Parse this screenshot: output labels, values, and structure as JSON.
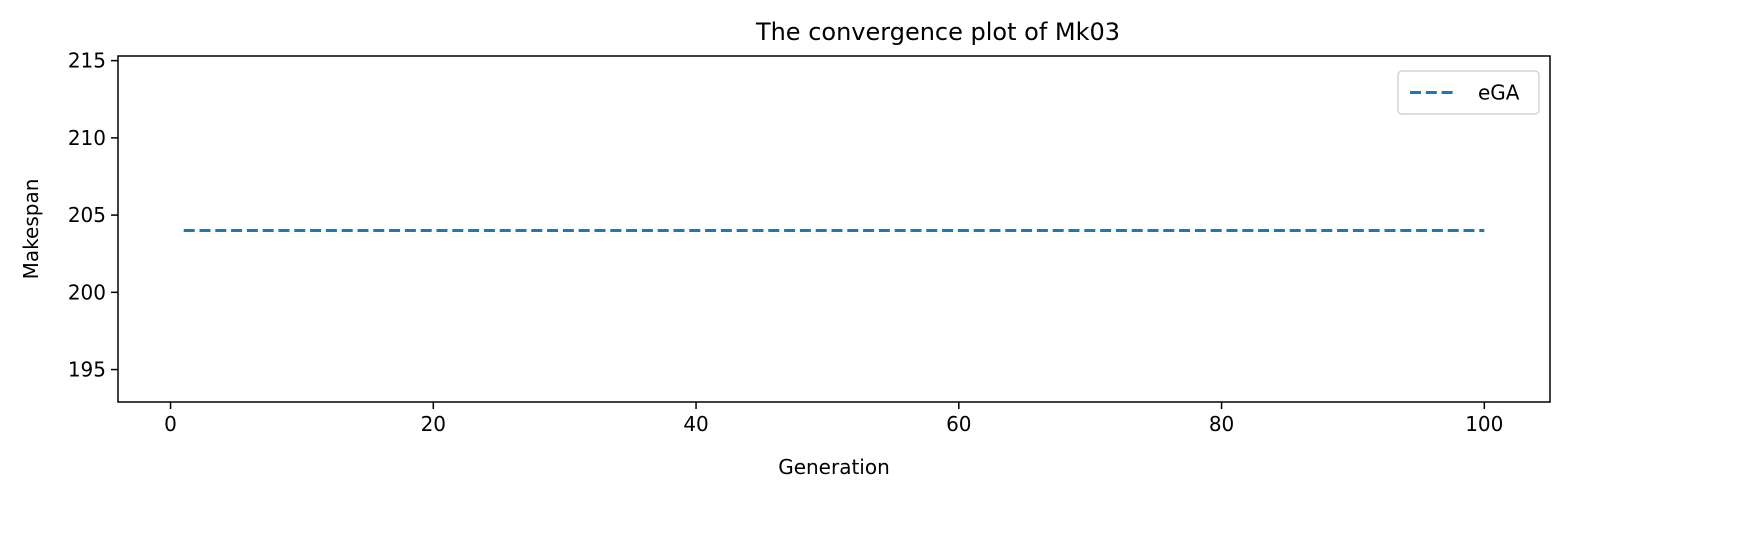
{
  "chart_data": {
    "type": "line",
    "title": "The convergence plot of Mk03",
    "xlabel": "Generation",
    "ylabel": "Makespan",
    "xlim": [
      -4,
      105
    ],
    "ylim": [
      192.9,
      215.3
    ],
    "xticks": [
      0,
      20,
      40,
      60,
      80,
      100
    ],
    "yticks": [
      195,
      200,
      205,
      210,
      215
    ],
    "grid": false,
    "legend_position": "top-right",
    "series": [
      {
        "name": "eGA",
        "color": "#1f77b4",
        "style": "dashed",
        "x": [
          1,
          100
        ],
        "y": [
          204,
          204
        ]
      }
    ]
  }
}
